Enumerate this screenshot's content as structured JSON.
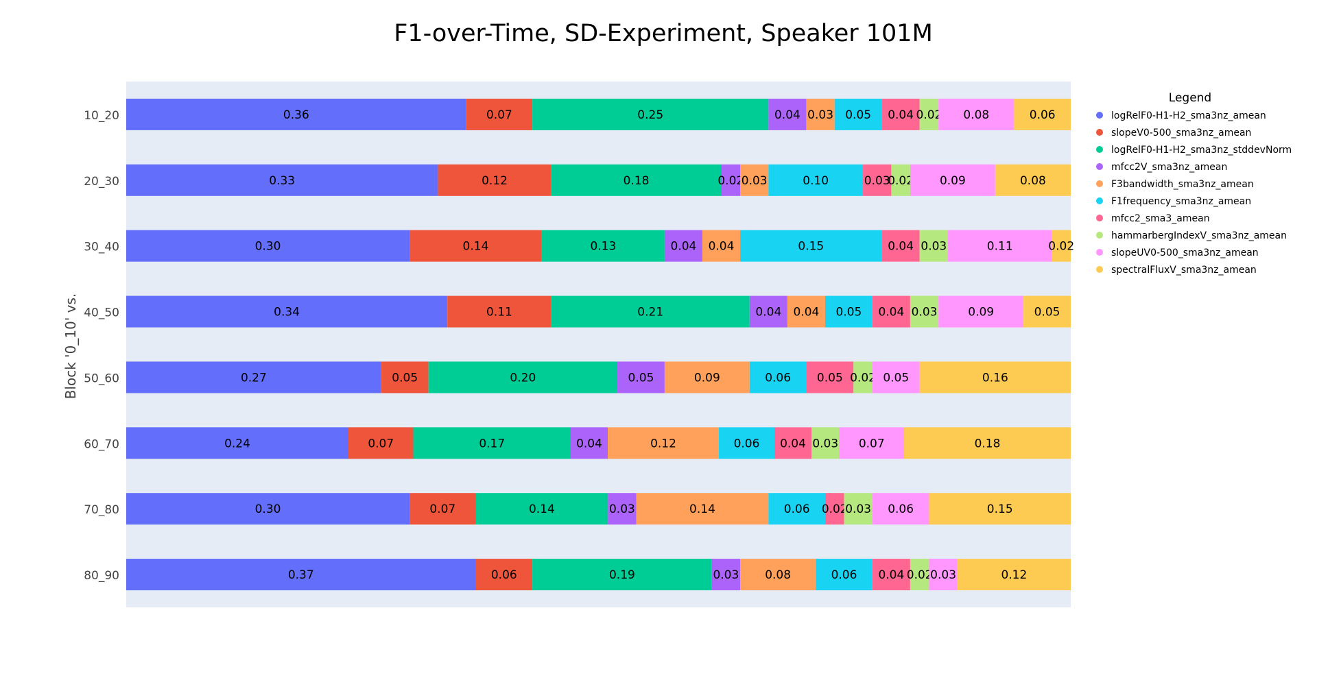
{
  "chart_data": {
    "type": "bar",
    "orientation": "horizontal",
    "stacked": true,
    "title": "F1-over-Time, SD-Experiment, Speaker 101M",
    "ylabel": "Block '0_10' vs.",
    "xlabel": "",
    "x_tick_labels_visible": false,
    "grid": false,
    "background_color": "#e5ecf6",
    "categories": [
      "10_20",
      "20_30",
      "30_40",
      "40_50",
      "50_60",
      "60_70",
      "70_80",
      "80_90"
    ],
    "legend": {
      "title": "Legend",
      "placement": "top-right, outside plot"
    },
    "series": [
      {
        "name": "logRelF0-H1-H2_sma3nz_amean",
        "color": "#636efa",
        "values": [
          0.36,
          0.33,
          0.3,
          0.34,
          0.27,
          0.24,
          0.3,
          0.37
        ]
      },
      {
        "name": "slopeV0-500_sma3nz_amean",
        "color": "#ef553b",
        "values": [
          0.07,
          0.12,
          0.14,
          0.11,
          0.05,
          0.07,
          0.07,
          0.06
        ]
      },
      {
        "name": "logRelF0-H1-H2_sma3nz_stddevNorm",
        "color": "#00cc96",
        "values": [
          0.25,
          0.18,
          0.13,
          0.21,
          0.2,
          0.17,
          0.14,
          0.19
        ]
      },
      {
        "name": "mfcc2V_sma3nz_amean",
        "color": "#ab63fa",
        "values": [
          0.04,
          0.02,
          0.04,
          0.04,
          0.05,
          0.04,
          0.03,
          0.03
        ]
      },
      {
        "name": "F3bandwidth_sma3nz_amean",
        "color": "#ffa15a",
        "values": [
          0.03,
          0.03,
          0.04,
          0.04,
          0.09,
          0.12,
          0.14,
          0.08
        ]
      },
      {
        "name": "F1frequency_sma3nz_amean",
        "color": "#19d3f3",
        "values": [
          0.05,
          0.1,
          0.15,
          0.05,
          0.06,
          0.06,
          0.06,
          0.06
        ]
      },
      {
        "name": "mfcc2_sma3_amean",
        "color": "#ff6692",
        "values": [
          0.04,
          0.03,
          0.04,
          0.04,
          0.05,
          0.04,
          0.02,
          0.04
        ]
      },
      {
        "name": "hammarbergIndexV_sma3nz_amean",
        "color": "#b6e880",
        "values": [
          0.02,
          0.02,
          0.03,
          0.03,
          0.02,
          0.03,
          0.03,
          0.02
        ]
      },
      {
        "name": "slopeUV0-500_sma3nz_amean",
        "color": "#ff97ff",
        "values": [
          0.08,
          0.09,
          0.11,
          0.09,
          0.05,
          0.07,
          0.06,
          0.03
        ]
      },
      {
        "name": "spectralFluxV_sma3nz_amean",
        "color": "#fecb52",
        "values": [
          0.06,
          0.08,
          0.02,
          0.05,
          0.16,
          0.18,
          0.15,
          0.12
        ]
      }
    ]
  }
}
